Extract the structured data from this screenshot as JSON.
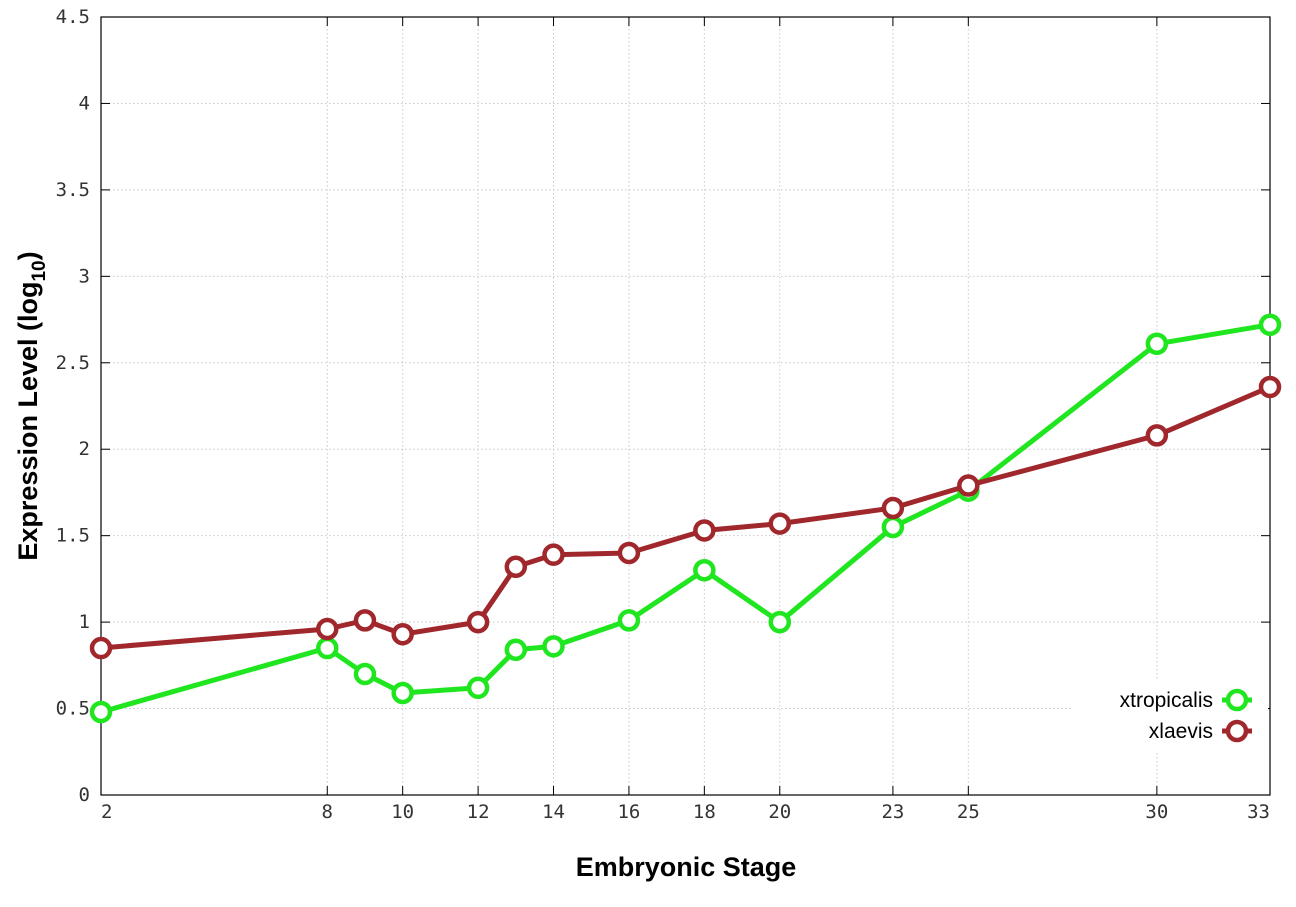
{
  "chart_data": {
    "type": "line",
    "title": "",
    "xlabel": "Embryonic Stage",
    "ylabel": {
      "text": "Expression Level (log",
      "subscript": "10",
      "suffix": ")"
    },
    "x": [
      2,
      8,
      9,
      10,
      12,
      13,
      14,
      16,
      18,
      20,
      23,
      25,
      30,
      33
    ],
    "xticks": [
      "2",
      "8",
      "10",
      "12",
      "14",
      "16",
      "18",
      "20",
      "23",
      "25",
      "30",
      "33"
    ],
    "xtick_values": [
      2,
      8,
      10,
      12,
      14,
      16,
      18,
      20,
      23,
      25,
      30,
      33
    ],
    "yticks": [
      "0",
      "0.5",
      "1",
      "1.5",
      "2",
      "2.5",
      "3",
      "3.5",
      "4",
      "4.5"
    ],
    "ytick_values": [
      0,
      0.5,
      1,
      1.5,
      2,
      2.5,
      3,
      3.5,
      4,
      4.5
    ],
    "xlim": [
      2,
      33
    ],
    "ylim": [
      0,
      4.5
    ],
    "grid": true,
    "legend_position": "bottom-right",
    "series": [
      {
        "name": "xtropicalis",
        "color": "#1fe61f",
        "values": [
          0.48,
          0.85,
          0.7,
          0.59,
          0.62,
          0.84,
          0.86,
          1.01,
          1.3,
          1.0,
          1.55,
          1.76,
          2.61,
          2.72
        ]
      },
      {
        "name": "xlaevis",
        "color": "#a0282c",
        "values": [
          0.85,
          0.96,
          1.01,
          0.93,
          1.0,
          1.32,
          1.39,
          1.4,
          1.53,
          1.57,
          1.66,
          1.79,
          2.08,
          2.36
        ]
      }
    ]
  }
}
